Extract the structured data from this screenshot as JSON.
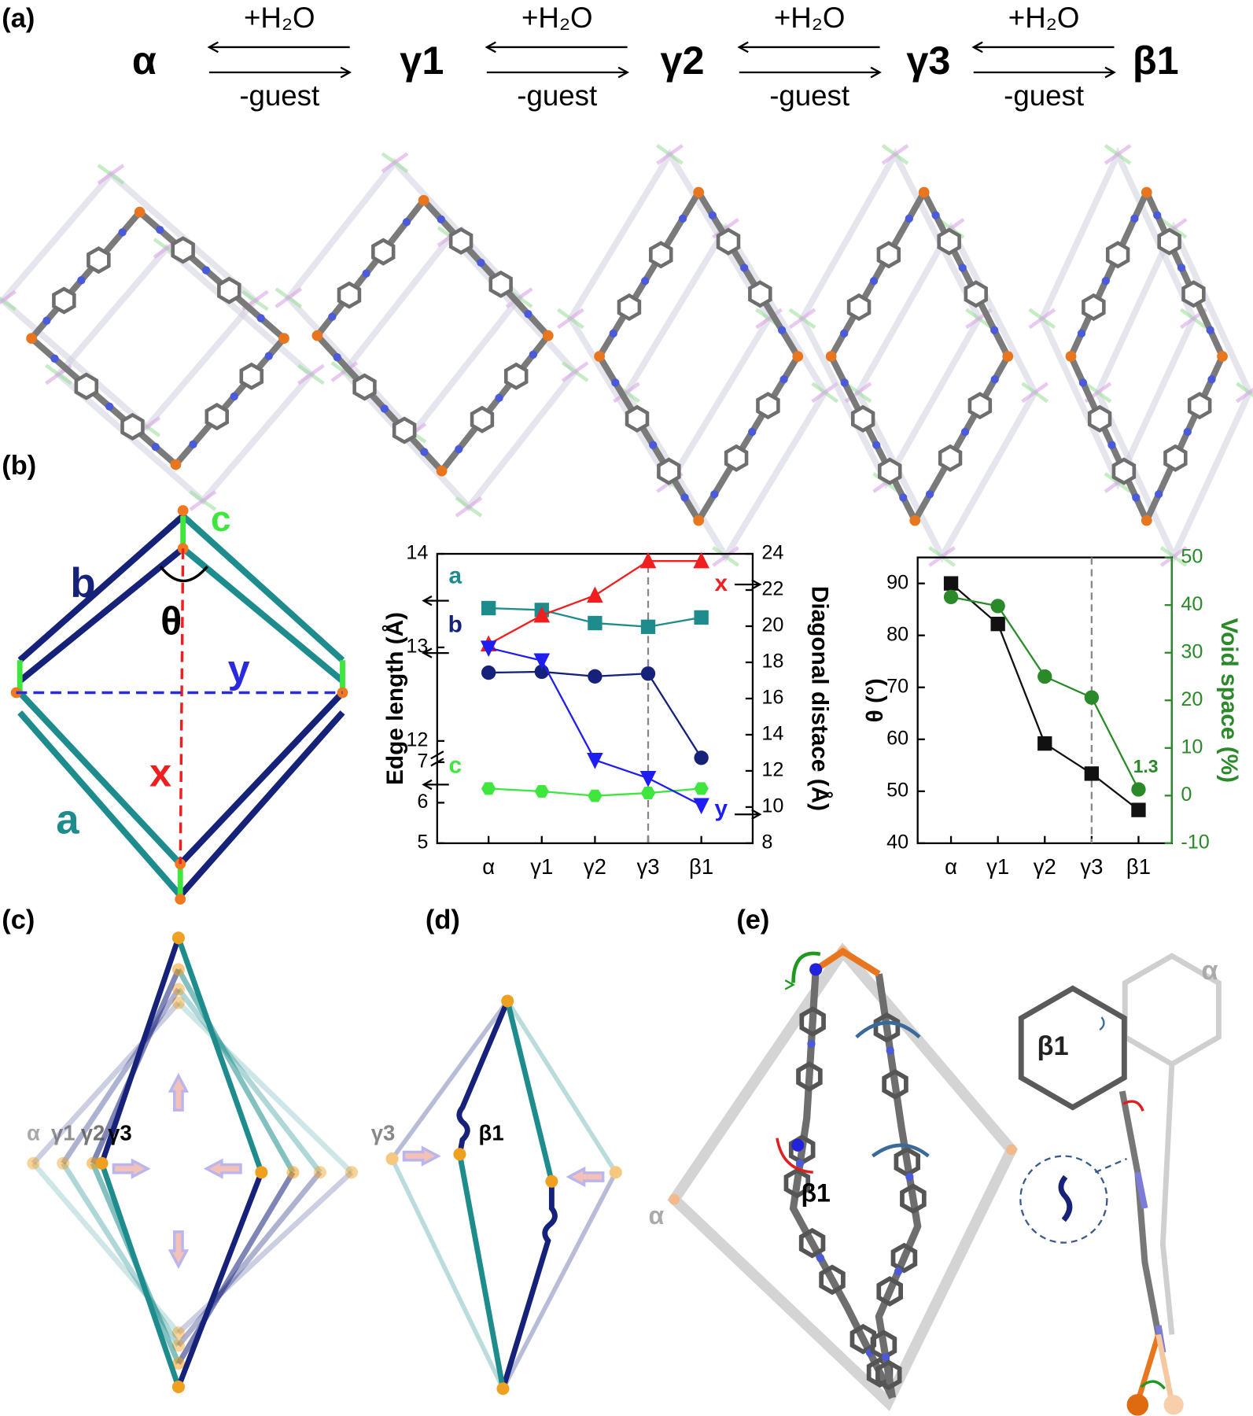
{
  "panels": [
    "(a)",
    "(b)",
    "(c)",
    "(d)",
    "(e)"
  ],
  "scheme": {
    "states": [
      "α",
      "γ1",
      "γ2",
      "γ3",
      "β1"
    ],
    "reactions": [
      {
        "forward": "+H₂O",
        "reverse": "-guest"
      },
      {
        "forward": "+H₂O",
        "reverse": "-guest"
      },
      {
        "forward": "+H₂O",
        "reverse": "-guest"
      },
      {
        "forward": "+H₂O",
        "reverse": "-guest"
      }
    ]
  },
  "diagram_b": {
    "labels": {
      "b": "b",
      "c": "c",
      "theta": "θ",
      "y": "y",
      "x": "x",
      "a": "a"
    }
  },
  "panel_c": {
    "labels": [
      "α",
      "γ1",
      "γ2",
      "γ3"
    ]
  },
  "panel_d": {
    "labels": [
      "γ3",
      "β1"
    ]
  },
  "panel_e": {
    "labels": [
      "α",
      "β1",
      "β1",
      "α"
    ]
  },
  "chart_data": [
    {
      "type": "line",
      "ylabel": "Edge length (Å)",
      "y2label": "Diagonal distace (Å)",
      "categories": [
        "α",
        "γ1",
        "γ2",
        "γ3",
        "β1"
      ],
      "ylim": [
        5,
        14
      ],
      "ybreak": [
        7,
        11.85
      ],
      "yticks": [
        5,
        6,
        7,
        12,
        13,
        14
      ],
      "y2lim": [
        8,
        24
      ],
      "y2ticks": [
        8,
        10,
        12,
        14,
        16,
        18,
        20,
        22,
        24
      ],
      "vline_at": 3,
      "series": [
        {
          "name": "a",
          "color": "#1e8c8c",
          "marker": "square",
          "values": [
            13.42,
            13.4,
            13.26,
            13.22,
            13.32
          ]
        },
        {
          "name": "b",
          "color": "#16217a",
          "marker": "circle",
          "values": [
            12.73,
            12.74,
            12.69,
            12.72,
            11.82
          ]
        },
        {
          "name": "c",
          "color": "#3ee63e",
          "marker": "hexagon",
          "values": [
            6.35,
            6.28,
            6.17,
            6.24,
            6.35
          ]
        },
        {
          "name": "x",
          "color": "#f01e1e",
          "marker": "triangle",
          "axis": "y2",
          "values": [
            19.0,
            20.6,
            21.7,
            23.6,
            23.6
          ]
        },
        {
          "name": "y",
          "color": "#1e1ef0",
          "marker": "triangle-down",
          "axis": "y2",
          "values": [
            18.8,
            18.1,
            12.6,
            11.6,
            10.1
          ]
        }
      ]
    },
    {
      "type": "line",
      "ylabel": "θ (°)",
      "y2label": "Void space (%)",
      "y2color": "#2a8a2a",
      "categories": [
        "α",
        "γ1",
        "γ2",
        "γ3",
        "β1"
      ],
      "ylim": [
        40,
        95
      ],
      "yticks": [
        40,
        50,
        60,
        70,
        80,
        90
      ],
      "y2lim": [
        -10,
        50
      ],
      "y2ticks": [
        -10,
        0,
        10,
        20,
        30,
        40,
        50
      ],
      "vline_at": 3,
      "series": [
        {
          "color": "#111111",
          "marker": "square",
          "values": [
            90,
            82.2,
            59.2,
            53.4,
            46.4
          ]
        },
        {
          "color": "#2a8a2a",
          "marker": "circle",
          "axis": "y2",
          "values": [
            41.7,
            39.8,
            25,
            20.6,
            1.3
          ],
          "labeled": [
            4
          ]
        }
      ]
    }
  ]
}
